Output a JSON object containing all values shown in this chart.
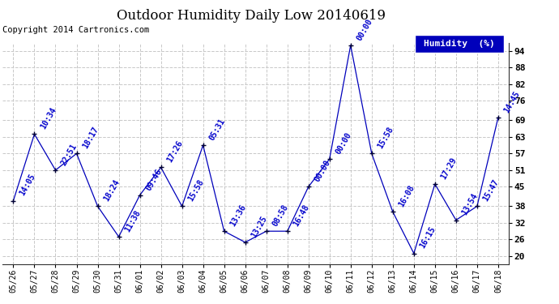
{
  "title": "Outdoor Humidity Daily Low 20140619",
  "copyright": "Copyright 2014 Cartronics.com",
  "legend_label": "Humidity  (%)",
  "ylim": [
    17,
    97
  ],
  "yticks": [
    20,
    26,
    32,
    38,
    45,
    51,
    57,
    63,
    69,
    76,
    82,
    88,
    94
  ],
  "background_color": "#ffffff",
  "grid_color": "#c8c8c8",
  "line_color": "#0000bb",
  "marker_color": "#000033",
  "dates": [
    "05/26",
    "05/27",
    "05/28",
    "05/29",
    "05/30",
    "05/31",
    "06/01",
    "06/02",
    "06/03",
    "06/04",
    "06/05",
    "06/06",
    "06/07",
    "06/08",
    "06/09",
    "06/10",
    "06/11",
    "06/12",
    "06/13",
    "06/14",
    "06/15",
    "06/16",
    "06/17",
    "06/18"
  ],
  "values": [
    40,
    64,
    51,
    57,
    38,
    27,
    42,
    52,
    38,
    60,
    29,
    25,
    29,
    29,
    45,
    55,
    96,
    57,
    36,
    21,
    46,
    33,
    38,
    70
  ],
  "time_labels": [
    "14:05",
    "10:34",
    "22:51",
    "18:17",
    "18:24",
    "11:38",
    "09:46",
    "17:26",
    "15:58",
    "05:31",
    "13:36",
    "13:25",
    "08:58",
    "16:48",
    "00:00",
    "00:00",
    "00:00",
    "15:58",
    "16:08",
    "16:15",
    "17:29",
    "13:54",
    "15:47",
    "14:45"
  ],
  "label_color": "#0000cc",
  "label_fontsize": 7,
  "title_fontsize": 12,
  "copyright_fontsize": 7.5,
  "legend_bg": "#0000bb",
  "legend_text_color": "#ffffff",
  "legend_fontsize": 8
}
